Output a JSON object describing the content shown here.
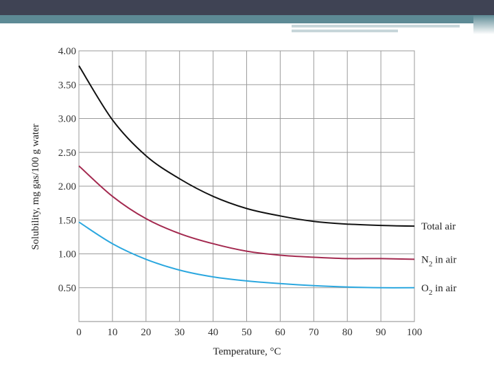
{
  "chart_data": {
    "type": "line",
    "title": "",
    "xlabel": "Temperature, °C",
    "ylabel": "Solubility, mg gas/100 g water",
    "xlim": [
      0,
      100
    ],
    "ylim": [
      0,
      4.0
    ],
    "grid": true,
    "x_ticks": [
      0,
      10,
      20,
      30,
      40,
      50,
      60,
      70,
      80,
      90,
      100
    ],
    "x_tick_labels": [
      "0",
      "10",
      "20",
      "30",
      "40",
      "50",
      "60",
      "70",
      "80",
      "90",
      "100"
    ],
    "y_ticks": [
      0.5,
      1.0,
      1.5,
      2.0,
      2.5,
      3.0,
      3.5,
      4.0
    ],
    "y_tick_labels": [
      "0.50",
      "1.00",
      "1.50",
      "2.00",
      "2.50",
      "3.00",
      "3.50",
      "4.00"
    ],
    "x": [
      0,
      10,
      20,
      30,
      40,
      50,
      60,
      70,
      80,
      90,
      100
    ],
    "series": [
      {
        "name": "Total air",
        "legend_main": "Total air",
        "legend_sub": "",
        "legend_tail": "",
        "color": "#111111",
        "values": [
          3.78,
          2.98,
          2.45,
          2.11,
          1.85,
          1.67,
          1.56,
          1.48,
          1.44,
          1.42,
          1.41
        ]
      },
      {
        "name": "N2 in air",
        "legend_main": "N",
        "legend_sub": "2",
        "legend_tail": " in air",
        "color": "#a3294f",
        "values": [
          2.3,
          1.85,
          1.52,
          1.3,
          1.15,
          1.04,
          0.98,
          0.95,
          0.93,
          0.93,
          0.92
        ]
      },
      {
        "name": "O2 in air",
        "legend_main": "O",
        "legend_sub": "2",
        "legend_tail": " in air",
        "color": "#2aa7df",
        "values": [
          1.47,
          1.15,
          0.92,
          0.76,
          0.66,
          0.6,
          0.56,
          0.53,
          0.51,
          0.5,
          0.5
        ]
      }
    ]
  }
}
